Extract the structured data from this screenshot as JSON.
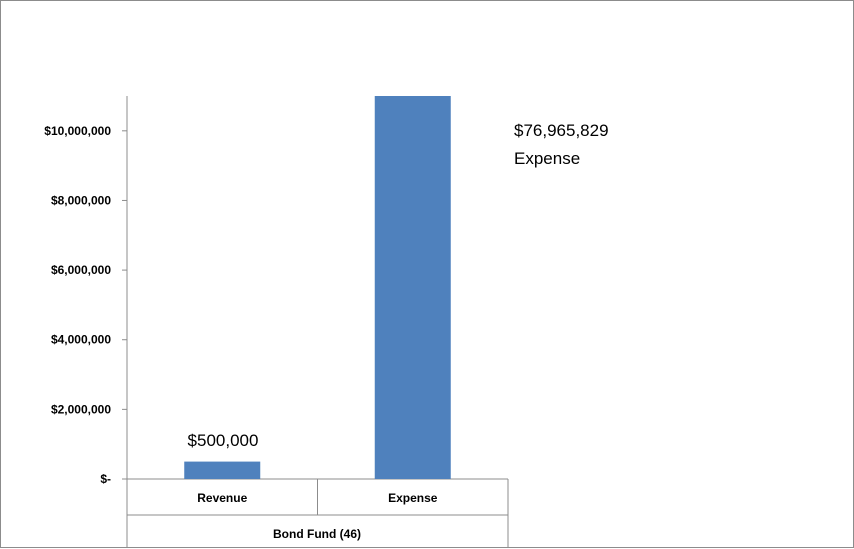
{
  "chart_data": {
    "type": "bar",
    "categories": [
      "Revenue",
      "Expense"
    ],
    "group_label": "Bond Fund (46)",
    "values": [
      500000,
      76965829
    ],
    "ylim": [
      0,
      11000000
    ],
    "y_ticks": [
      {
        "value": 0,
        "label": "$-"
      },
      {
        "value": 2000000,
        "label": "$2,000,000"
      },
      {
        "value": 4000000,
        "label": "$4,000,000"
      },
      {
        "value": 6000000,
        "label": "$6,000,000"
      },
      {
        "value": 8000000,
        "label": "$8,000,000"
      },
      {
        "value": 10000000,
        "label": "$10,000,000"
      }
    ],
    "data_labels": [
      "$500,000",
      "$76,965,829"
    ],
    "expense_note": "Expense",
    "grid": false,
    "legend": "none",
    "bar_color": "#4f81bd"
  }
}
